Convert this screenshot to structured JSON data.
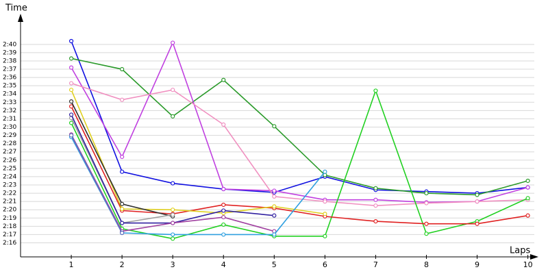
{
  "chart_data": {
    "type": "line",
    "y_label": "Time",
    "x_label": "Laps",
    "x": [
      1,
      2,
      3,
      4,
      5,
      6,
      7,
      8,
      9,
      10
    ],
    "xlim": [
      0,
      10.1
    ],
    "xticks": [
      1,
      2,
      3,
      4,
      5,
      6,
      7,
      8,
      9,
      10
    ],
    "ylim": [
      134.3,
      163.3
    ],
    "yticks": [
      {
        "value": 136,
        "label": "2:16"
      },
      {
        "value": 137,
        "label": "2:17"
      },
      {
        "value": 138,
        "label": "2:18"
      },
      {
        "value": 139,
        "label": "2:19"
      },
      {
        "value": 140,
        "label": "2:20"
      },
      {
        "value": 141,
        "label": "2:21"
      },
      {
        "value": 142,
        "label": "2:22"
      },
      {
        "value": 143,
        "label": "2:23"
      },
      {
        "value": 144,
        "label": "2:24"
      },
      {
        "value": 145,
        "label": "2:25"
      },
      {
        "value": 146,
        "label": "2:26"
      },
      {
        "value": 147,
        "label": "2:27"
      },
      {
        "value": 148,
        "label": "2:28"
      },
      {
        "value": 149,
        "label": "2:29"
      },
      {
        "value": 150,
        "label": "2:30"
      },
      {
        "value": 151,
        "label": "2:31"
      },
      {
        "value": 152,
        "label": "2:32"
      },
      {
        "value": 153,
        "label": "2:33"
      },
      {
        "value": 154,
        "label": "2:34"
      },
      {
        "value": 155,
        "label": "2:35"
      },
      {
        "value": 156,
        "label": "2:36"
      },
      {
        "value": 157,
        "label": "2:37"
      },
      {
        "value": 158,
        "label": "2:38"
      },
      {
        "value": 159,
        "label": "2:39"
      },
      {
        "value": 160,
        "label": "2:40"
      }
    ],
    "grid": true,
    "series": [
      {
        "color": "#1010e0",
        "values": [
          160.4,
          144.6,
          143.2,
          142.5,
          142.1,
          144.0,
          142.4,
          142.2,
          142.0,
          142.7
        ]
      },
      {
        "color": "#2a9a2a",
        "values": [
          158.3,
          157.0,
          151.3,
          155.7,
          150.1,
          144.2,
          142.6,
          142.0,
          141.8,
          143.5
        ]
      },
      {
        "color": "#c040e0",
        "values": [
          157.2,
          146.4,
          160.2,
          142.5,
          142.3,
          141.2,
          141.2,
          140.9,
          141.0,
          142.7
        ]
      },
      {
        "color": "#f090c0",
        "values": [
          155.3,
          153.3,
          154.5,
          150.3,
          141.6,
          141.0,
          140.5,
          140.8,
          141.0,
          141.2
        ]
      },
      {
        "color": "#20d020",
        "values": [
          150.5,
          137.7,
          136.5,
          138.2,
          136.8,
          136.8,
          154.4,
          137.1,
          138.6,
          141.4
        ]
      },
      {
        "color": "#e02020",
        "values": [
          152.5,
          139.9,
          139.5,
          140.6,
          140.2,
          139.2,
          138.6,
          138.3,
          138.3,
          139.3
        ]
      },
      {
        "color": "#e0d020",
        "values": [
          154.5,
          140.1,
          140.0,
          139.6,
          140.4,
          139.5,
          null,
          null,
          null,
          null
        ]
      },
      {
        "color": "#303030",
        "values": [
          153.1,
          140.7,
          139.2,
          null,
          null,
          null,
          null,
          null,
          null,
          null
        ]
      },
      {
        "color": "#a0a0a0",
        "values": [
          151.1,
          138.4,
          139.4,
          null,
          null,
          null,
          null,
          null,
          null,
          null
        ]
      },
      {
        "color": "#3020a0",
        "values": [
          151.5,
          138.4,
          138.4,
          139.9,
          139.3,
          null,
          null,
          null,
          null,
          null
        ]
      },
      {
        "color": "#a040a0",
        "values": [
          149.1,
          137.4,
          138.4,
          139.1,
          137.4,
          null,
          null,
          null,
          null,
          null
        ]
      },
      {
        "color": "#30a0e0",
        "values": [
          148.8,
          137.2,
          137.0,
          137.0,
          137.0,
          144.6,
          null,
          null,
          null,
          null
        ]
      },
      {
        "color": "#6070c0",
        "values": [
          149.0,
          137.2,
          null,
          null,
          null,
          null,
          null,
          null,
          null,
          null
        ]
      }
    ]
  }
}
